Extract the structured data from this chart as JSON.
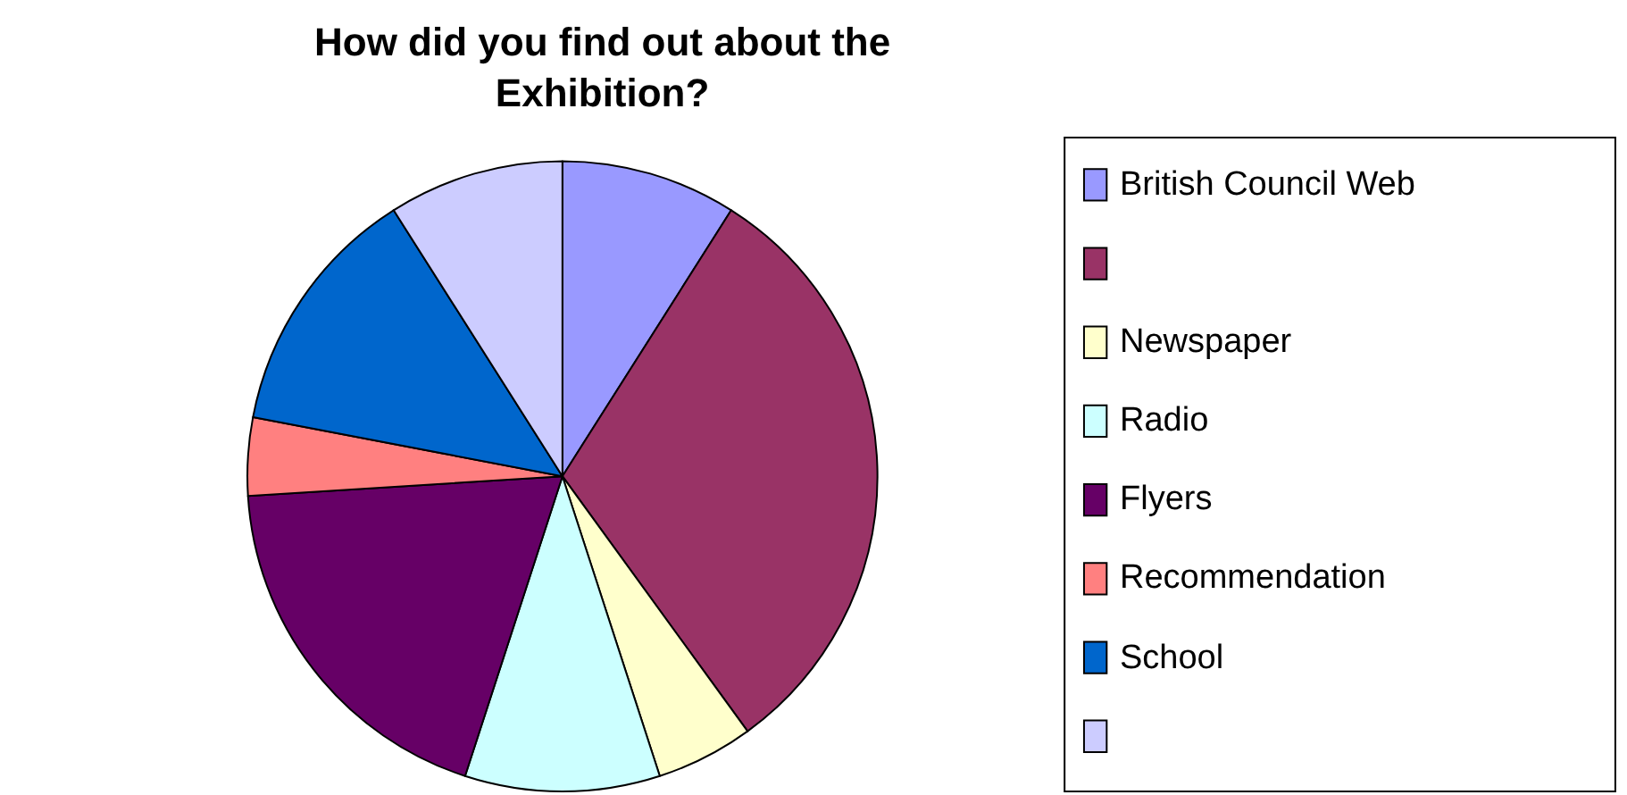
{
  "chart_data": {
    "type": "pie",
    "title": "How did you find out about the Exhibition?",
    "categories": [
      "British Council Web",
      null,
      "Newspaper",
      "Radio",
      "Flyers",
      "Recommendation",
      "School",
      null
    ],
    "values": [
      9,
      31,
      5,
      10,
      19,
      4,
      13,
      9
    ],
    "colors": [
      "#9999ff",
      "#993366",
      "#ffffcc",
      "#ccffff",
      "#660066",
      "#ff8080",
      "#0066cc",
      "#ccccff"
    ],
    "legend": "right"
  }
}
